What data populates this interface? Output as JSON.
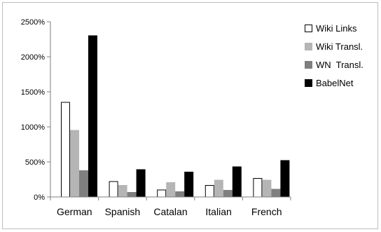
{
  "chart_data": {
    "type": "bar",
    "categories": [
      "German",
      "Spanish",
      "Catalan",
      "Italian",
      "French"
    ],
    "series": [
      {
        "name": "Wiki Links",
        "values": [
          1350,
          220,
          100,
          165,
          265
        ],
        "fill": "#ffffff",
        "stroke": "#000000"
      },
      {
        "name": "Wiki Transl.",
        "values": [
          950,
          165,
          205,
          240,
          240
        ],
        "fill": "#b5b5b5",
        "stroke": "#b5b5b5"
      },
      {
        "name": "WN  Transl.",
        "values": [
          375,
          65,
          75,
          95,
          110
        ],
        "fill": "#7f7f7f",
        "stroke": "#7f7f7f"
      },
      {
        "name": "BabelNet",
        "values": [
          2300,
          390,
          355,
          430,
          520
        ],
        "fill": "#000000",
        "stroke": "#000000"
      }
    ],
    "ylim": [
      0,
      2500
    ],
    "yticks": [
      0,
      500,
      1000,
      1500,
      2000,
      2500
    ],
    "ytick_labels": [
      "0%",
      "500%",
      "1000%",
      "1500%",
      "2000%",
      "2500%"
    ],
    "legend_position": "right",
    "grid": false
  }
}
